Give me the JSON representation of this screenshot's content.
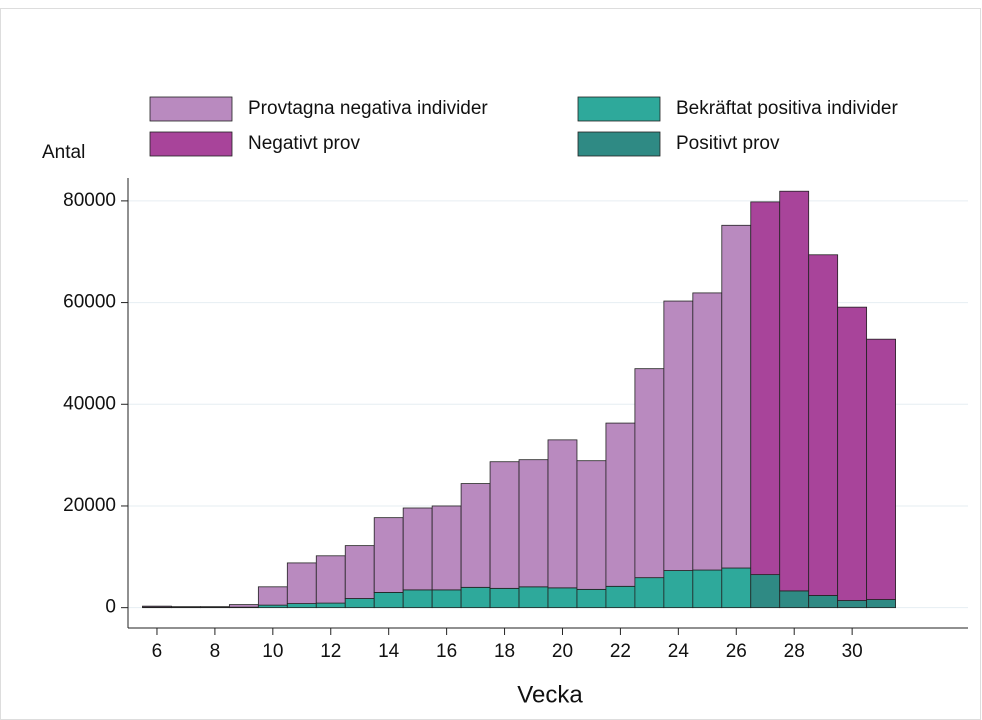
{
  "chart_data": {
    "type": "stacked-bar",
    "y_label": "Antal",
    "x_label": "Vecka",
    "x": [
      6,
      7,
      8,
      9,
      10,
      11,
      12,
      13,
      14,
      15,
      16,
      17,
      18,
      19,
      20,
      21,
      22,
      23,
      24,
      25,
      26,
      27,
      28,
      29,
      30,
      31
    ],
    "series": [
      {
        "name": "Provtagna negativa individer",
        "color": "#b98abf",
        "values": [
          200,
          150,
          150,
          500,
          3600,
          8000,
          9300,
          10400,
          14700,
          16100,
          16500,
          20400,
          24900,
          25000,
          29100,
          25300,
          32100,
          41100,
          53000,
          54500,
          67400,
          null,
          null,
          null,
          null,
          null
        ]
      },
      {
        "name": "Bekräftat positiva individer",
        "color": "#2ea99b",
        "values": [
          100,
          50,
          50,
          100,
          500,
          800,
          900,
          1800,
          3000,
          3500,
          3500,
          4000,
          3800,
          4100,
          3900,
          3600,
          4200,
          5900,
          7300,
          7400,
          7800,
          null,
          null,
          null,
          null,
          null
        ]
      },
      {
        "name": "Negativt prov",
        "color": "#a8449a",
        "values": [
          null,
          null,
          null,
          null,
          null,
          null,
          null,
          null,
          null,
          null,
          null,
          null,
          null,
          null,
          null,
          null,
          null,
          null,
          null,
          null,
          null,
          73300,
          78600,
          67000,
          57700,
          51200
        ]
      },
      {
        "name": "Positivt prov",
        "color": "#2f8a84",
        "values": [
          null,
          null,
          null,
          null,
          null,
          null,
          null,
          null,
          null,
          null,
          null,
          null,
          null,
          null,
          null,
          null,
          null,
          null,
          null,
          null,
          null,
          6500,
          3300,
          2400,
          1400,
          1600
        ]
      }
    ],
    "xlim": [
      5,
      34
    ],
    "xticks": [
      6,
      8,
      10,
      12,
      14,
      16,
      18,
      20,
      22,
      24,
      26,
      28,
      30
    ],
    "ylim": [
      -4000,
      84500
    ],
    "yticks": [
      0,
      20000,
      40000,
      60000,
      80000
    ],
    "grid": true
  }
}
